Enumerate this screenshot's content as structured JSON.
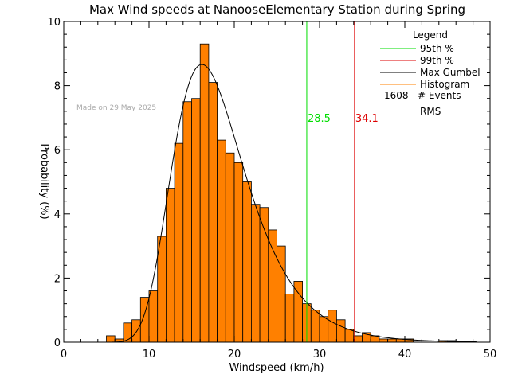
{
  "chart_data": {
    "type": "bar",
    "title": "Max Wind speeds at NanooseElementary Station during Spring",
    "xlabel": "Windspeed (km/h)",
    "ylabel": "Probability (%)",
    "xlim": [
      0,
      50
    ],
    "ylim": [
      0,
      10
    ],
    "x_ticks": [
      0,
      10,
      20,
      30,
      40,
      50
    ],
    "y_ticks": [
      0,
      2,
      4,
      6,
      8,
      10
    ],
    "stamp": "Made on 29 May 2025",
    "bin_width": 1,
    "bins": [
      {
        "x": 5,
        "value": 0.2
      },
      {
        "x": 6,
        "value": 0.1
      },
      {
        "x": 7,
        "value": 0.6
      },
      {
        "x": 8,
        "value": 0.7
      },
      {
        "x": 9,
        "value": 1.4
      },
      {
        "x": 10,
        "value": 1.6
      },
      {
        "x": 11,
        "value": 3.3
      },
      {
        "x": 12,
        "value": 4.8
      },
      {
        "x": 13,
        "value": 6.2
      },
      {
        "x": 14,
        "value": 7.5
      },
      {
        "x": 15,
        "value": 7.6
      },
      {
        "x": 16,
        "value": 9.3
      },
      {
        "x": 17,
        "value": 8.1
      },
      {
        "x": 18,
        "value": 6.3
      },
      {
        "x": 19,
        "value": 5.9
      },
      {
        "x": 20,
        "value": 5.6
      },
      {
        "x": 21,
        "value": 5.0
      },
      {
        "x": 22,
        "value": 4.3
      },
      {
        "x": 23,
        "value": 4.2
      },
      {
        "x": 24,
        "value": 3.5
      },
      {
        "x": 25,
        "value": 3.0
      },
      {
        "x": 26,
        "value": 1.5
      },
      {
        "x": 27,
        "value": 1.9
      },
      {
        "x": 28,
        "value": 1.2
      },
      {
        "x": 29,
        "value": 1.0
      },
      {
        "x": 30,
        "value": 0.8
      },
      {
        "x": 31,
        "value": 1.0
      },
      {
        "x": 32,
        "value": 0.7
      },
      {
        "x": 33,
        "value": 0.4
      },
      {
        "x": 34,
        "value": 0.2
      },
      {
        "x": 35,
        "value": 0.3
      },
      {
        "x": 36,
        "value": 0.2
      },
      {
        "x": 37,
        "value": 0.1
      },
      {
        "x": 38,
        "value": 0.1
      },
      {
        "x": 39,
        "value": 0.1
      },
      {
        "x": 40,
        "value": 0.1
      },
      {
        "x": 44,
        "value": 0.05
      },
      {
        "x": 45,
        "value": 0.05
      }
    ],
    "gumbel": {
      "mode": 16.2,
      "scale": 4.25,
      "peak": 8.66,
      "x_start": 5,
      "x_end": 48.5
    },
    "lines": [
      {
        "label": "95th %",
        "x": 28.5,
        "value_label": "28.5",
        "color": "#00dd00"
      },
      {
        "label": "99th %",
        "x": 34.1,
        "value_label": "34.1",
        "color": "#dd0000"
      }
    ],
    "legend": {
      "title": "Legend",
      "entries": [
        {
          "label": "95th %",
          "color": "#00dd00"
        },
        {
          "label": "99th %",
          "color": "#dd0000"
        },
        {
          "label": "Max Gumbel",
          "color": "#000000"
        },
        {
          "label": "Histogram",
          "color": "#ff8000"
        }
      ],
      "events_count": "1608",
      "events_label": "# Events",
      "rms_label": "RMS"
    },
    "colors": {
      "histogram": "#ff8000",
      "curve": "#000000",
      "axis": "#000000"
    }
  }
}
